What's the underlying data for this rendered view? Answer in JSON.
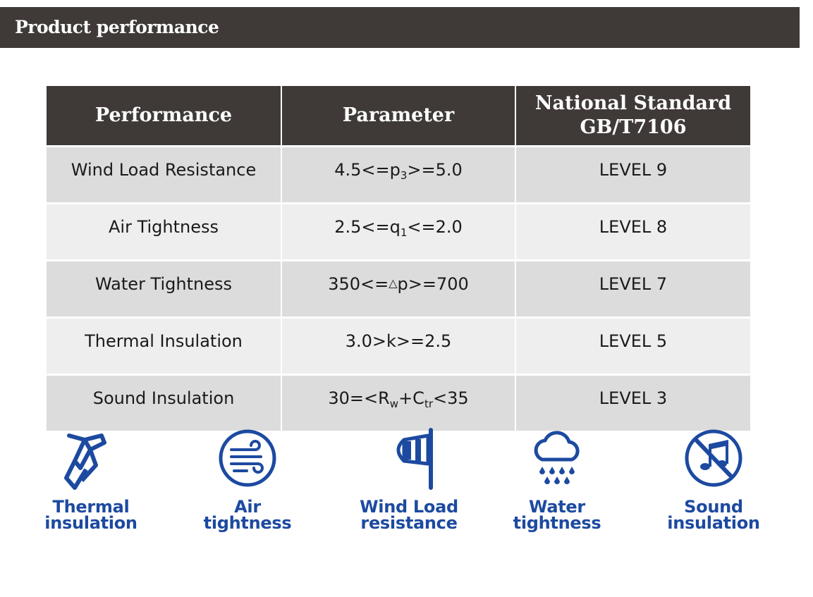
{
  "banner": {
    "title": "Product performance"
  },
  "table": {
    "headers": {
      "performance": "Performance",
      "parameter": "Parameter",
      "standard_line1": "National Standard",
      "standard_line2": "GB/T7106"
    },
    "rows": [
      {
        "performance": "Wind Load Resistance",
        "param_a": "4.5<=p",
        "param_sub": "3",
        "param_b": ">=5.0",
        "level": "LEVEL 9"
      },
      {
        "performance": "Air Tightness",
        "param_a": "2.5<=q",
        "param_sub": "1",
        "param_b": "<=2.0",
        "level": "LEVEL 8"
      },
      {
        "performance": "Water Tightness",
        "param_a": "350<=",
        "param_tri": "△",
        "param_b": "p>=700",
        "level": "LEVEL 7"
      },
      {
        "performance": "Thermal Insulation",
        "param_a": "3.0>k>=2.5",
        "level": "LEVEL 5"
      },
      {
        "performance": "Sound Insulation",
        "param_a": "30=<R",
        "param_sub": "w",
        "param_b": "+C",
        "param_sub2": "tr",
        "param_c": "<35",
        "level": "LEVEL 3"
      }
    ]
  },
  "icons": [
    {
      "name": "thermal-insulation-icon",
      "line1": "Thermal",
      "line2": "insulation"
    },
    {
      "name": "air-tightness-icon",
      "line1": "Air",
      "line2": "tightness"
    },
    {
      "name": "wind-load-resistance-icon",
      "line1": "Wind Load",
      "line2": "resistance"
    },
    {
      "name": "water-tightness-icon",
      "line1": "Water",
      "line2": "tightness"
    },
    {
      "name": "sound-insulation-icon",
      "line1": "Sound",
      "line2": "insulation"
    }
  ],
  "colors": {
    "banner": "#3f3a38",
    "header": "#3f3a38",
    "row_odd": "#dcdcdc",
    "row_even": "#eeeeee",
    "icon_blue": "#1d4aa0"
  }
}
